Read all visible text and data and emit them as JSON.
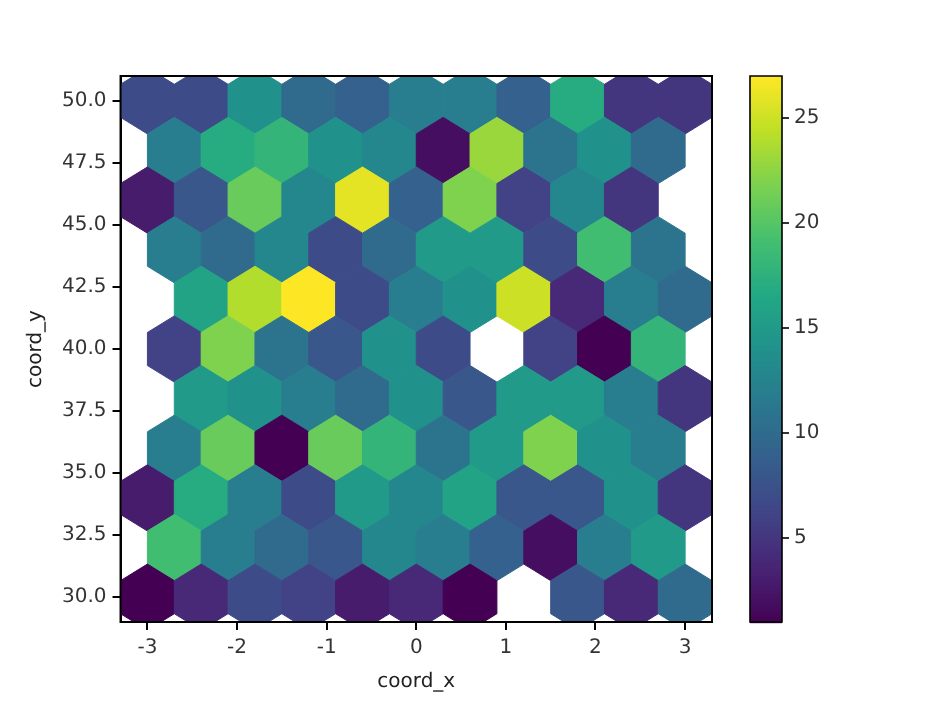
{
  "chart_data": {
    "type": "scatter",
    "xlabel": "coord_x",
    "ylabel": "coord_y",
    "x": [
      -3,
      -2.4,
      -1.8,
      -1.2,
      -0.6,
      0,
      0.6,
      1.2,
      1.8,
      2.4,
      3,
      -2.7,
      -2.1,
      -1.5,
      -0.9,
      -0.3,
      0.3,
      0.9,
      1.5,
      2.1,
      2.7,
      -3,
      -2.4,
      -1.8,
      -1.2,
      -0.6,
      0,
      0.6,
      1.2,
      1.8,
      2.4,
      -2.7,
      -2.1,
      -1.5,
      -0.9,
      -0.3,
      0.3,
      0.9,
      1.5,
      2.1,
      2.7,
      -2.4,
      -1.8,
      -1.2,
      -0.6,
      0,
      0.6,
      1.2,
      1.8,
      2.4,
      3,
      -2.7,
      -2.1,
      -1.5,
      -0.9,
      -0.3,
      0.3,
      1.5,
      2.1,
      2.7,
      -2.4,
      -1.8,
      -1.2,
      -0.6,
      0,
      0.6,
      1.2,
      1.8,
      2.4,
      3,
      -2.7,
      -2.1,
      -1.5,
      -0.9,
      -0.3,
      0.3,
      0.9,
      1.5,
      2.1,
      2.7,
      -3,
      -2.4,
      -1.8,
      -1.2,
      -0.6,
      0,
      0.6,
      1.2,
      1.8,
      2.4,
      3,
      -2.7,
      -2.1,
      -1.5,
      -0.9,
      -0.3,
      0.3,
      0.9,
      1.5,
      2.1,
      2.7,
      -3,
      -2.4,
      -1.8,
      -1.2,
      -0.6,
      0,
      0.6,
      1.8,
      2.4,
      3
    ],
    "values": [
      50,
      50,
      50,
      50,
      50,
      50,
      50,
      50,
      50,
      50,
      50,
      48,
      48,
      48,
      48,
      48,
      48,
      48,
      48,
      48,
      48,
      46,
      46,
      46,
      46,
      46,
      46,
      46,
      46,
      46,
      46,
      44,
      44,
      44,
      44,
      44,
      44,
      44,
      44,
      44,
      44,
      42,
      42,
      42,
      42,
      42,
      42,
      42,
      42,
      42,
      42,
      40,
      40,
      40,
      40,
      40,
      40,
      40,
      40,
      40,
      38,
      38,
      38,
      38,
      38,
      38,
      38,
      38,
      38,
      38,
      36,
      36,
      36,
      36,
      36,
      36,
      36,
      36,
      36,
      36,
      34,
      34,
      34,
      34,
      34,
      34,
      34,
      34,
      34,
      34,
      34,
      32,
      32,
      32,
      32,
      32,
      32,
      32,
      32,
      32,
      32,
      30,
      30,
      30,
      30,
      30,
      30,
      30,
      30,
      30,
      30
    ],
    "cvalues": [
      7,
      7,
      14,
      10,
      9,
      12,
      12,
      9,
      17,
      5,
      5,
      12,
      17,
      18,
      14,
      13,
      2,
      23,
      11,
      14,
      10,
      3,
      8,
      21,
      13,
      26,
      9,
      22,
      6,
      13,
      5,
      12,
      10,
      13,
      7,
      10,
      15,
      15,
      7,
      19,
      11,
      16,
      24,
      27,
      7,
      12,
      14,
      25,
      4,
      12,
      10,
      6,
      22,
      11,
      8,
      14,
      7,
      6,
      1,
      18,
      15,
      14,
      12,
      10,
      14,
      8,
      15,
      15,
      12,
      5,
      12,
      21,
      1,
      21,
      18,
      11,
      15,
      22,
      14,
      12,
      3,
      17,
      12,
      7,
      15,
      13,
      16,
      8,
      8,
      14,
      5,
      19,
      12,
      10,
      8,
      13,
      12,
      9,
      2,
      12,
      15,
      1,
      4,
      7,
      6,
      3,
      4,
      1,
      8,
      4,
      10
    ],
    "xlim": [
      -3.3,
      3.3
    ],
    "ylim": [
      29.0,
      51.0
    ],
    "xticks": [
      -3,
      -2,
      -1,
      0,
      1,
      2,
      3
    ],
    "yticks": [
      {
        "value": 30,
        "label": "30.0"
      },
      {
        "value": 32.5,
        "label": "32.5"
      },
      {
        "value": 35,
        "label": "35.0"
      },
      {
        "value": 37.5,
        "label": "37.5"
      },
      {
        "value": 40,
        "label": "40.0"
      },
      {
        "value": 42.5,
        "label": "42.5"
      },
      {
        "value": 45,
        "label": "45.0"
      },
      {
        "value": 47.5,
        "label": "47.5"
      },
      {
        "value": 50,
        "label": "50.0"
      }
    ],
    "clim": [
      1,
      27
    ],
    "cticks": [
      5,
      10,
      15,
      20,
      25
    ],
    "grid": false,
    "legend": false
  }
}
